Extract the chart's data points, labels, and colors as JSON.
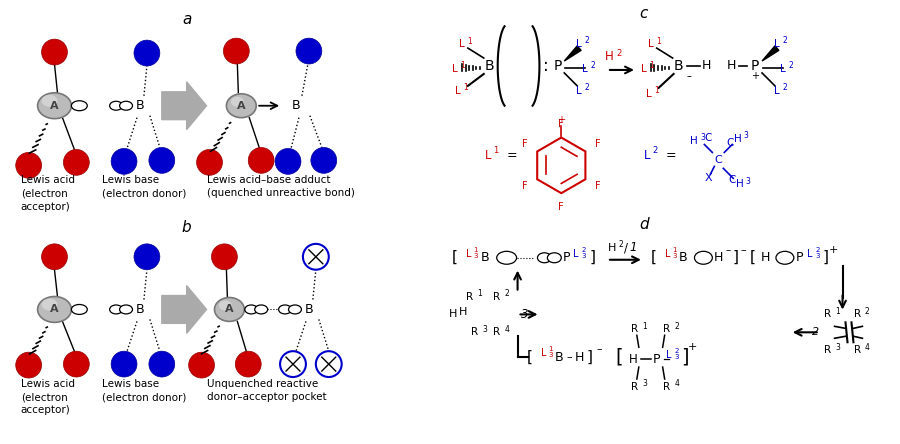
{
  "background": "#ffffff",
  "red": "#cc0000",
  "blue": "#0000cc",
  "black": "#000000",
  "figsize": [
    9.0,
    4.44
  ],
  "dpi": 100,
  "label_a": "a",
  "label_b": "b",
  "label_c": "c",
  "label_d": "d",
  "text_lewis_acid": "Lewis acid\n(electron\nacceptor)",
  "text_lewis_base": "Lewis base\n(electron donor)",
  "text_adduct": "Lewis acid–base adduct\n(quenched unreactive bond)",
  "text_unquenched": "Unquenched reactive\ndonor–acceptor pocket"
}
